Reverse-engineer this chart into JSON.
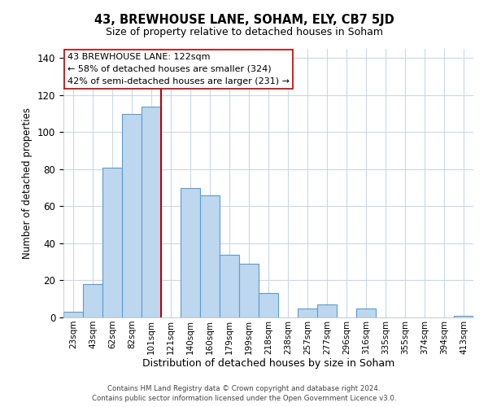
{
  "title": "43, BREWHOUSE LANE, SOHAM, ELY, CB7 5JD",
  "subtitle": "Size of property relative to detached houses in Soham",
  "xlabel": "Distribution of detached houses by size in Soham",
  "ylabel": "Number of detached properties",
  "bar_labels": [
    "23sqm",
    "43sqm",
    "62sqm",
    "82sqm",
    "101sqm",
    "121sqm",
    "140sqm",
    "160sqm",
    "179sqm",
    "199sqm",
    "218sqm",
    "238sqm",
    "257sqm",
    "277sqm",
    "296sqm",
    "316sqm",
    "335sqm",
    "355sqm",
    "374sqm",
    "394sqm",
    "413sqm"
  ],
  "bar_values": [
    3,
    18,
    81,
    110,
    114,
    0,
    70,
    66,
    34,
    29,
    13,
    0,
    5,
    7,
    0,
    5,
    0,
    0,
    0,
    0,
    1
  ],
  "bar_color": "#bdd7ee",
  "bar_edge_color": "#5b9bd5",
  "vline_index": 4,
  "vline_color": "#c00000",
  "ylim": [
    0,
    145
  ],
  "yticks": [
    0,
    20,
    40,
    60,
    80,
    100,
    120,
    140
  ],
  "annotation_title": "43 BREWHOUSE LANE: 122sqm",
  "annotation_line1": "← 58% of detached houses are smaller (324)",
  "annotation_line2": "42% of semi-detached houses are larger (231) →",
  "footer1": "Contains HM Land Registry data © Crown copyright and database right 2024.",
  "footer2": "Contains public sector information licensed under the Open Government Licence v3.0.",
  "background_color": "#ffffff",
  "grid_color": "#c8d8ea"
}
